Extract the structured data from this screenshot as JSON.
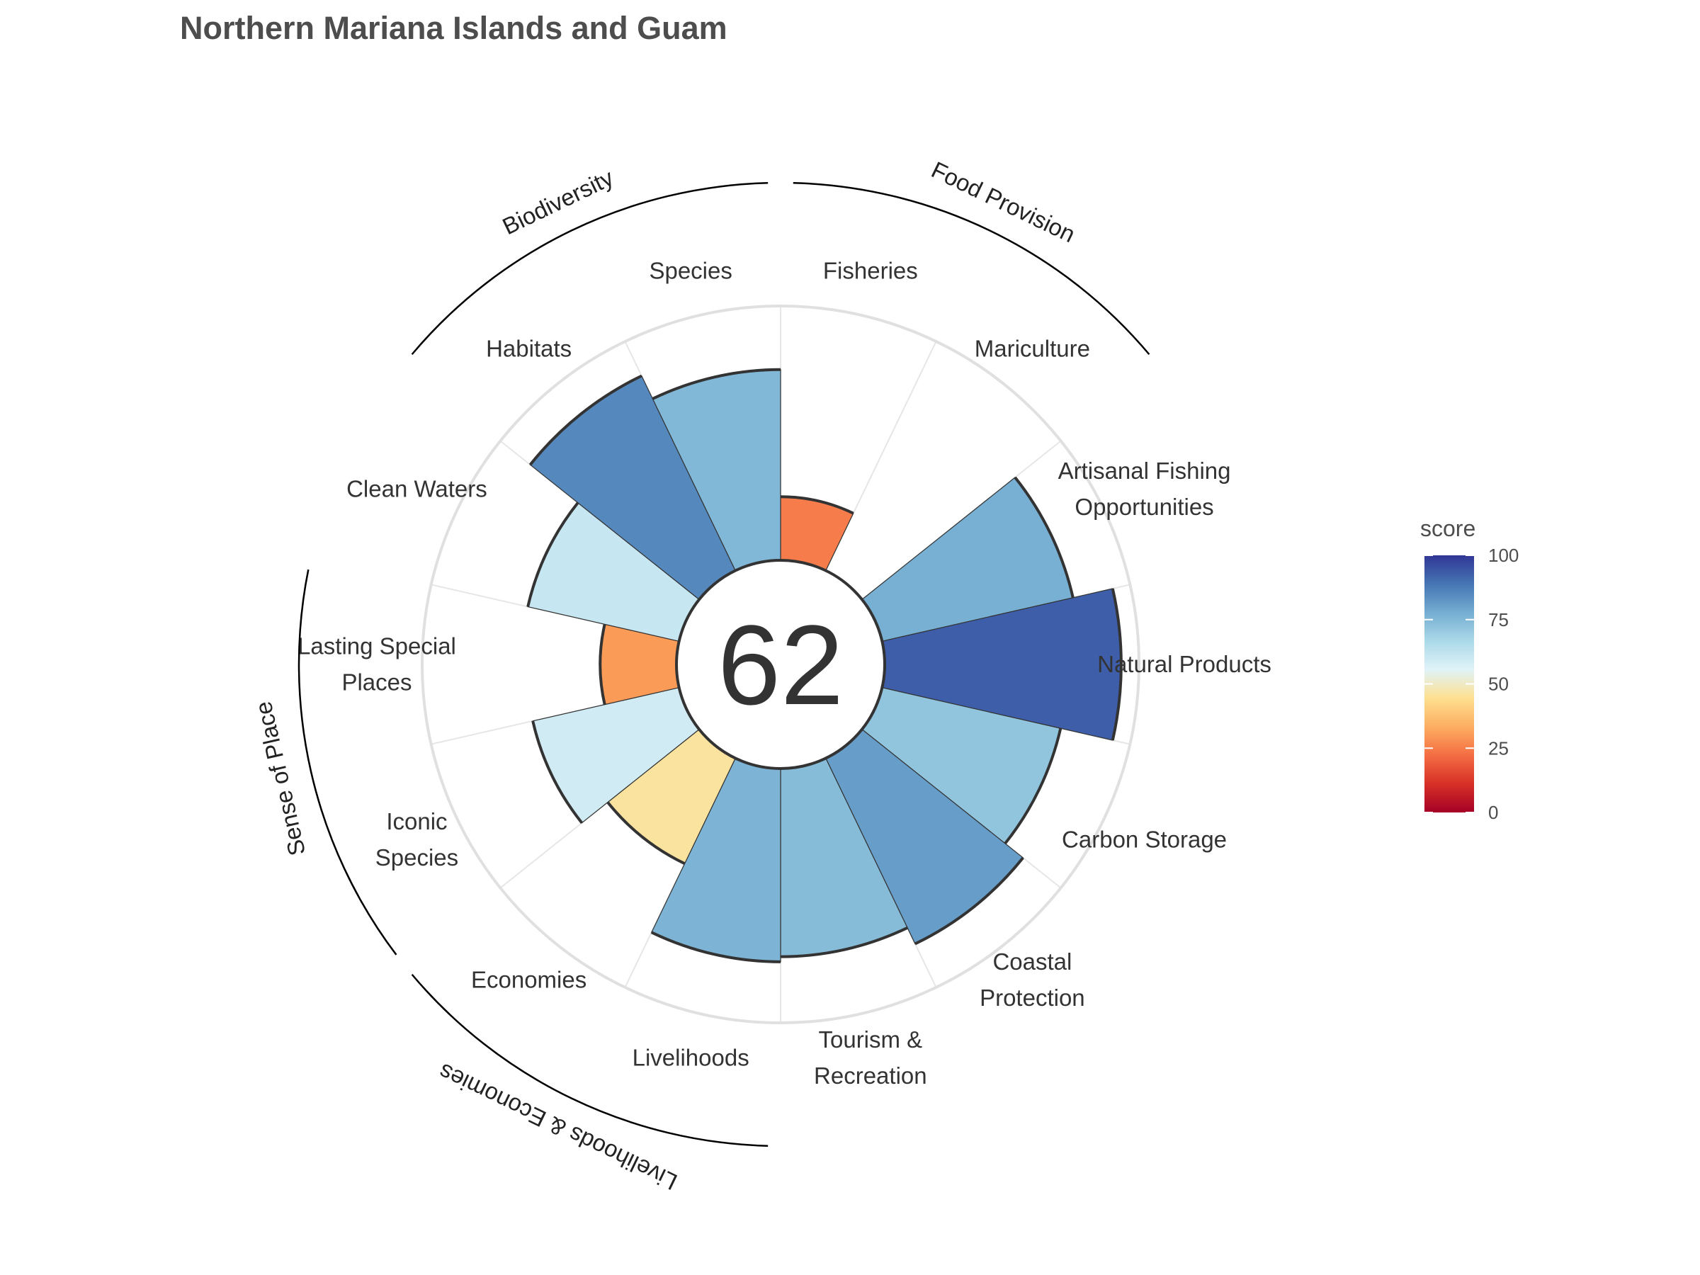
{
  "chart_data": {
    "type": "bar",
    "polar": true,
    "title": "Northern Mariana Islands and Guam",
    "center_value": "62",
    "ylim": [
      0,
      100
    ],
    "categories": [
      {
        "label": "Fisheries",
        "value": 25
      },
      {
        "label": "Mariculture",
        "value": 0
      },
      {
        "label": "Artisanal Fishing\nOpportunities",
        "value": 77
      },
      {
        "label": "Natural Products",
        "value": 93
      },
      {
        "label": "Carbon Storage",
        "value": 72
      },
      {
        "label": "Coastal\nProtection",
        "value": 81
      },
      {
        "label": "Tourism &\nRecreation",
        "value": 74
      },
      {
        "label": "Livelihoods",
        "value": 76
      },
      {
        "label": "Economies",
        "value": 46
      },
      {
        "label": "Iconic\nSpecies",
        "value": 59
      },
      {
        "label": "Lasting Special\nPlaces",
        "value": 30
      },
      {
        "label": "Clean Waters",
        "value": 61
      },
      {
        "label": "Habitats",
        "value": 85
      },
      {
        "label": "Species",
        "value": 75
      }
    ],
    "groups": [
      {
        "name": "Food Provision",
        "members": [
          "Fisheries",
          "Mariculture"
        ]
      },
      {
        "name": "Biodiversity",
        "members": [
          "Habitats",
          "Species"
        ]
      },
      {
        "name": "Sense of Place",
        "members": [
          "Iconic\nSpecies",
          "Lasting Special\nPlaces"
        ]
      },
      {
        "name": "Livelihoods & Economies",
        "members": [
          "Livelihoods",
          "Economies"
        ]
      }
    ],
    "legend": {
      "title": "score",
      "ticks": [
        "0",
        "25",
        "50",
        "75",
        "100"
      ],
      "position": "right",
      "colors": [
        "#a50026",
        "#d73027",
        "#f46d43",
        "#fdae61",
        "#fee090",
        "#e0f3f8",
        "#abd9e9",
        "#74add1",
        "#4575b4",
        "#313695"
      ]
    },
    "grid": true
  }
}
